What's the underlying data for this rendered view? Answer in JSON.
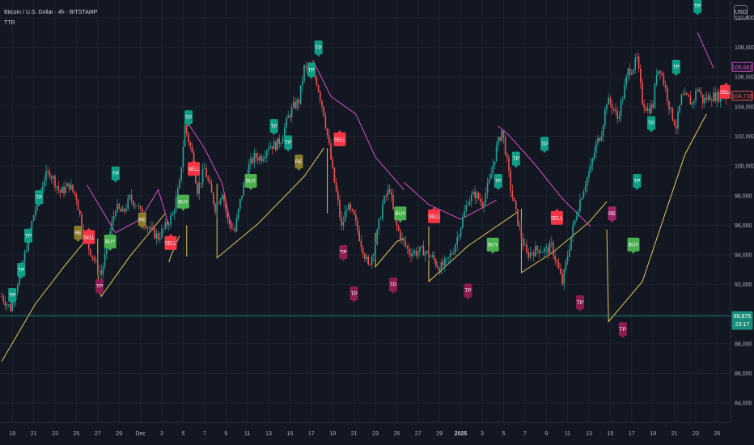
{
  "header": {
    "symbol": "Bitcoin / U.S. Dollar · 4h · BITSTAMP",
    "indicator": "TTR"
  },
  "currency": "USD",
  "colors": {
    "bg": "#131722",
    "up": "#26a69a",
    "down": "#ef5350",
    "support": "#e0c75a",
    "resistance": "#d64fc2",
    "grid": "#1e2230",
    "tp_green": "#0f9e85",
    "tp_magenta": "#8c1c52",
    "sell": "#f23645",
    "buy": "#4caf50",
    "re_olive": "#8a7a2a",
    "re_magenta": "#a0266a"
  },
  "chart_data": {
    "type": "candlestick",
    "x_label": "",
    "y_label": "",
    "ylim": [
      82700,
      111200
    ],
    "x_ticks": [
      {
        "i": 6,
        "label": "19"
      },
      {
        "i": 18,
        "label": "21"
      },
      {
        "i": 30,
        "label": "23"
      },
      {
        "i": 42,
        "label": "25"
      },
      {
        "i": 54,
        "label": "27"
      },
      {
        "i": 66,
        "label": "29"
      },
      {
        "i": 78,
        "label": "Dec"
      },
      {
        "i": 90,
        "label": "3"
      },
      {
        "i": 102,
        "label": "5"
      },
      {
        "i": 114,
        "label": "7"
      },
      {
        "i": 126,
        "label": "9"
      },
      {
        "i": 138,
        "label": "11"
      },
      {
        "i": 150,
        "label": "13"
      },
      {
        "i": 162,
        "label": "15"
      },
      {
        "i": 174,
        "label": "17"
      },
      {
        "i": 186,
        "label": "19"
      },
      {
        "i": 198,
        "label": "21"
      },
      {
        "i": 210,
        "label": "23"
      },
      {
        "i": 222,
        "label": "25"
      },
      {
        "i": 234,
        "label": "27"
      },
      {
        "i": 246,
        "label": "29"
      },
      {
        "i": 258,
        "label": "2025"
      },
      {
        "i": 270,
        "label": "3"
      },
      {
        "i": 282,
        "label": "5"
      },
      {
        "i": 294,
        "label": "7"
      },
      {
        "i": 306,
        "label": "9"
      },
      {
        "i": 318,
        "label": "11"
      },
      {
        "i": 330,
        "label": "13"
      },
      {
        "i": 342,
        "label": "15"
      },
      {
        "i": 354,
        "label": "17"
      },
      {
        "i": 366,
        "label": "19"
      },
      {
        "i": 378,
        "label": "21"
      },
      {
        "i": 390,
        "label": "23"
      },
      {
        "i": 402,
        "label": "25"
      }
    ],
    "y_ticks": [
      84000,
      86000,
      88000,
      90000,
      92000,
      94000,
      96000,
      98000,
      100000,
      102000,
      104000,
      106000,
      108000,
      110000
    ],
    "y_tick_labels": [
      "84,000",
      "86,000",
      "88,000",
      "90,000",
      "92,000",
      "94,000",
      "96,000",
      "98,000",
      "100,000",
      "102,000",
      "104,000",
      "106,000",
      "108,000",
      "110,000"
    ],
    "price_anchors": [
      [
        0,
        91200
      ],
      [
        5,
        90400
      ],
      [
        12,
        93500
      ],
      [
        18,
        96700
      ],
      [
        24,
        99200
      ],
      [
        27,
        99600
      ],
      [
        33,
        98200
      ],
      [
        38,
        98700
      ],
      [
        42,
        97900
      ],
      [
        45,
        96000
      ],
      [
        49,
        94500
      ],
      [
        53,
        93400
      ],
      [
        56,
        92700
      ],
      [
        60,
        95000
      ],
      [
        64,
        97200
      ],
      [
        68,
        96800
      ],
      [
        72,
        97800
      ],
      [
        76,
        97400
      ],
      [
        80,
        96300
      ],
      [
        84,
        95600
      ],
      [
        88,
        95200
      ],
      [
        92,
        95900
      ],
      [
        96,
        96700
      ],
      [
        100,
        98800
      ],
      [
        103,
        102700
      ],
      [
        107,
        100800
      ],
      [
        110,
        98400
      ],
      [
        114,
        99800
      ],
      [
        117,
        98500
      ],
      [
        120,
        97200
      ],
      [
        124,
        98300
      ],
      [
        127,
        96300
      ],
      [
        131,
        95600
      ],
      [
        134,
        97600
      ],
      [
        138,
        99800
      ],
      [
        142,
        100600
      ],
      [
        146,
        100600
      ],
      [
        150,
        101400
      ],
      [
        154,
        101400
      ],
      [
        157,
        101800
      ],
      [
        161,
        103300
      ],
      [
        164,
        104000
      ],
      [
        167,
        104400
      ],
      [
        170,
        106600
      ],
      [
        172,
        106400
      ],
      [
        174,
        106600
      ],
      [
        177,
        105700
      ],
      [
        181,
        103600
      ],
      [
        184,
        101300
      ],
      [
        186,
        99600
      ],
      [
        189,
        97500
      ],
      [
        191,
        95800
      ],
      [
        194,
        97300
      ],
      [
        198,
        96500
      ],
      [
        202,
        94800
      ],
      [
        206,
        93200
      ],
      [
        210,
        94800
      ],
      [
        214,
        97400
      ],
      [
        218,
        98500
      ],
      [
        221,
        96200
      ],
      [
        225,
        95000
      ],
      [
        229,
        94200
      ],
      [
        233,
        94200
      ],
      [
        237,
        94300
      ],
      [
        242,
        93800
      ],
      [
        246,
        93100
      ],
      [
        250,
        93500
      ],
      [
        254,
        94400
      ],
      [
        258,
        96000
      ],
      [
        262,
        97700
      ],
      [
        266,
        98100
      ],
      [
        270,
        97500
      ],
      [
        274,
        98900
      ],
      [
        278,
        101200
      ],
      [
        281,
        102400
      ],
      [
        283,
        101100
      ],
      [
        286,
        98500
      ],
      [
        289,
        96800
      ],
      [
        292,
        95200
      ],
      [
        295,
        94000
      ],
      [
        298,
        94200
      ],
      [
        302,
        94400
      ],
      [
        306,
        94300
      ],
      [
        309,
        94600
      ],
      [
        312,
        93400
      ],
      [
        315,
        92100
      ],
      [
        318,
        94000
      ],
      [
        321,
        95800
      ],
      [
        324,
        97300
      ],
      [
        327,
        98500
      ],
      [
        331,
        99900
      ],
      [
        334,
        101400
      ],
      [
        337,
        102300
      ],
      [
        340,
        104400
      ],
      [
        343,
        104100
      ],
      [
        346,
        103200
      ],
      [
        349,
        104700
      ],
      [
        352,
        106400
      ],
      [
        355,
        106700
      ],
      [
        357,
        107200
      ],
      [
        360,
        104400
      ],
      [
        363,
        103800
      ],
      [
        366,
        104100
      ],
      [
        368,
        106400
      ],
      [
        370,
        106600
      ],
      [
        373,
        105200
      ],
      [
        376,
        103600
      ],
      [
        379,
        102700
      ],
      [
        382,
        104600
      ],
      [
        385,
        104600
      ],
      [
        388,
        104200
      ],
      [
        391,
        105300
      ],
      [
        394,
        104400
      ],
      [
        398,
        104700
      ],
      [
        402,
        104700
      ],
      [
        407,
        104700
      ]
    ],
    "support_segments": [
      [
        [
          0,
          86800
        ],
        [
          19,
          90700
        ],
        [
          35,
          93200
        ],
        [
          50,
          95400
        ]
      ],
      [
        [
          54,
          95100
        ],
        [
          54,
          92700
        ],
        [
          56,
          91200
        ],
        [
          72,
          93900
        ],
        [
          92,
          96800
        ]
      ],
      [
        [
          94,
          93500
        ],
        [
          95,
          93900
        ],
        [
          100,
          95300
        ]
      ],
      [
        [
          104,
          96000
        ],
        [
          104,
          93900
        ]
      ],
      [
        [
          121,
          98800
        ],
        [
          121,
          93800
        ],
        [
          144,
          96100
        ],
        [
          170,
          99300
        ],
        [
          181,
          101200
        ]
      ],
      [
        [
          183,
          101200
        ],
        [
          183,
          96800
        ]
      ],
      [
        [
          210,
          95500
        ],
        [
          210,
          93200
        ],
        [
          222,
          94900
        ],
        [
          226,
          95100
        ]
      ],
      [
        [
          240,
          95900
        ],
        [
          240,
          92200
        ],
        [
          262,
          94600
        ],
        [
          290,
          96900
        ]
      ],
      [
        [
          292,
          97100
        ],
        [
          292,
          92800
        ],
        [
          310,
          94200
        ],
        [
          330,
          96200
        ],
        [
          340,
          97600
        ]
      ],
      [
        [
          340,
          95700
        ],
        [
          341,
          89500
        ],
        [
          360,
          92200
        ],
        [
          384,
          100800
        ],
        [
          396,
          103500
        ]
      ]
    ],
    "resistance_segments": [
      [
        [
          48,
          98700
        ],
        [
          64,
          95500
        ],
        [
          78,
          96400
        ],
        [
          88,
          98400
        ],
        [
          94,
          96000
        ]
      ],
      [
        [
          103,
          103200
        ],
        [
          114,
          101200
        ],
        [
          124,
          98800
        ],
        [
          129,
          95900
        ]
      ],
      [
        [
          175,
          107100
        ],
        [
          185,
          104700
        ],
        [
          199,
          103500
        ],
        [
          210,
          100600
        ],
        [
          226,
          98400
        ]
      ],
      [
        [
          226,
          98900
        ],
        [
          240,
          97400
        ],
        [
          258,
          96400
        ],
        [
          278,
          97700
        ]
      ],
      [
        [
          279,
          102700
        ],
        [
          284,
          102200
        ],
        [
          299,
          100200
        ],
        [
          315,
          97800
        ],
        [
          331,
          95900
        ]
      ],
      [
        [
          391,
          109000
        ],
        [
          400,
          106600
        ]
      ]
    ],
    "signals": [
      {
        "i": 6,
        "side": "up",
        "price": 91300,
        "text": "TP",
        "color": "tp_green"
      },
      {
        "i": 11,
        "side": "up",
        "price": 93000,
        "text": "TP",
        "color": "tp_green"
      },
      {
        "i": 15,
        "side": "up",
        "price": 95300,
        "text": "TP",
        "color": "tp_green"
      },
      {
        "i": 21,
        "side": "up",
        "price": 97900,
        "text": "TP",
        "color": "tp_green"
      },
      {
        "i": 43,
        "side": "up",
        "price": 95500,
        "text": "RE",
        "color": "re_olive"
      },
      {
        "i": 49,
        "side": "down",
        "price": 95200,
        "text": "SELL",
        "color": "sell"
      },
      {
        "i": 55,
        "side": "up",
        "price": 91900,
        "text": "TP",
        "color": "tp_magenta"
      },
      {
        "i": 61,
        "side": "up",
        "price": 94900,
        "text": "BUY",
        "color": "buy"
      },
      {
        "i": 64,
        "side": "up",
        "price": 99500,
        "text": "TP",
        "color": "tp_green"
      },
      {
        "i": 79,
        "side": "up",
        "price": 96400,
        "text": "RE",
        "color": "re_olive"
      },
      {
        "i": 95,
        "side": "down",
        "price": 94800,
        "text": "SELL",
        "color": "sell"
      },
      {
        "i": 102,
        "side": "up",
        "price": 97600,
        "text": "BUY",
        "color": "buy"
      },
      {
        "i": 105,
        "side": "up",
        "price": 103300,
        "text": "TP",
        "color": "tp_green"
      },
      {
        "i": 108,
        "side": "down",
        "price": 99800,
        "text": "SELL",
        "color": "sell"
      },
      {
        "i": 140,
        "side": "up",
        "price": 99000,
        "text": "BUY",
        "color": "buy"
      },
      {
        "i": 161,
        "side": "up",
        "price": 101600,
        "text": "TP",
        "color": "tp_green"
      },
      {
        "i": 153,
        "side": "up",
        "price": 102700,
        "text": "TP",
        "color": "tp_green"
      },
      {
        "i": 167,
        "side": "up",
        "price": 100300,
        "text": "RE",
        "color": "re_olive"
      },
      {
        "i": 174,
        "side": "up",
        "price": 106500,
        "text": "TP",
        "color": "tp_green"
      },
      {
        "i": 178,
        "side": "up",
        "price": 108000,
        "text": "TP",
        "color": "tp_green"
      },
      {
        "i": 190,
        "side": "down",
        "price": 101800,
        "text": "SELL",
        "color": "sell"
      },
      {
        "i": 192,
        "side": "up",
        "price": 94200,
        "text": "TP",
        "color": "tp_magenta"
      },
      {
        "i": 198,
        "side": "up",
        "price": 91400,
        "text": "TP",
        "color": "tp_magenta"
      },
      {
        "i": 220,
        "side": "up",
        "price": 92000,
        "text": "TP",
        "color": "tp_magenta"
      },
      {
        "i": 224,
        "side": "up",
        "price": 96800,
        "text": "BUY",
        "color": "buy"
      },
      {
        "i": 243,
        "side": "down",
        "price": 96600,
        "text": "SELL",
        "color": "sell"
      },
      {
        "i": 262,
        "side": "up",
        "price": 91600,
        "text": "TP",
        "color": "tp_magenta"
      },
      {
        "i": 276,
        "side": "up",
        "price": 94700,
        "text": "BUY",
        "color": "buy"
      },
      {
        "i": 279,
        "side": "up",
        "price": 99000,
        "text": "TP",
        "color": "tp_green"
      },
      {
        "i": 289,
        "side": "up",
        "price": 100500,
        "text": "TP",
        "color": "tp_green"
      },
      {
        "i": 305,
        "side": "up",
        "price": 101500,
        "text": "TP",
        "color": "tp_green"
      },
      {
        "i": 312,
        "side": "down",
        "price": 96500,
        "text": "SELL",
        "color": "sell"
      },
      {
        "i": 325,
        "side": "up",
        "price": 90800,
        "text": "TP",
        "color": "tp_magenta"
      },
      {
        "i": 343,
        "side": "up",
        "price": 96800,
        "text": "RE",
        "color": "re_magenta"
      },
      {
        "i": 349,
        "side": "up",
        "price": 89000,
        "text": "TP",
        "color": "tp_magenta"
      },
      {
        "i": 355,
        "side": "up",
        "price": 94700,
        "text": "BUY",
        "color": "buy"
      },
      {
        "i": 357,
        "side": "up",
        "price": 99000,
        "text": "TP",
        "color": "tp_green"
      },
      {
        "i": 365,
        "side": "up",
        "price": 102900,
        "text": "TP",
        "color": "tp_green"
      },
      {
        "i": 379,
        "side": "up",
        "price": 106700,
        "text": "TP",
        "color": "tp_green"
      },
      {
        "i": 391,
        "side": "up",
        "price": 110800,
        "text": "TP",
        "color": "tp_green"
      },
      {
        "i": 407,
        "side": "down",
        "price": 105000,
        "text": "SELL",
        "color": "sell"
      }
    ],
    "price_line": 89875,
    "price_labels": [
      {
        "text": "106,682",
        "price": 106682,
        "border": "#d64fc2",
        "fill": "#131722",
        "color": "#d64fc2"
      },
      {
        "text": "104,738",
        "price": 104738,
        "border": "#ef5350",
        "fill": "#131722",
        "color": "#ef5350"
      },
      {
        "text": "89,875",
        "price": 89875,
        "border": "#1a8e7c",
        "fill": "#1a8e7c",
        "color": "#ffffff",
        "sub": "23:17"
      }
    ]
  }
}
